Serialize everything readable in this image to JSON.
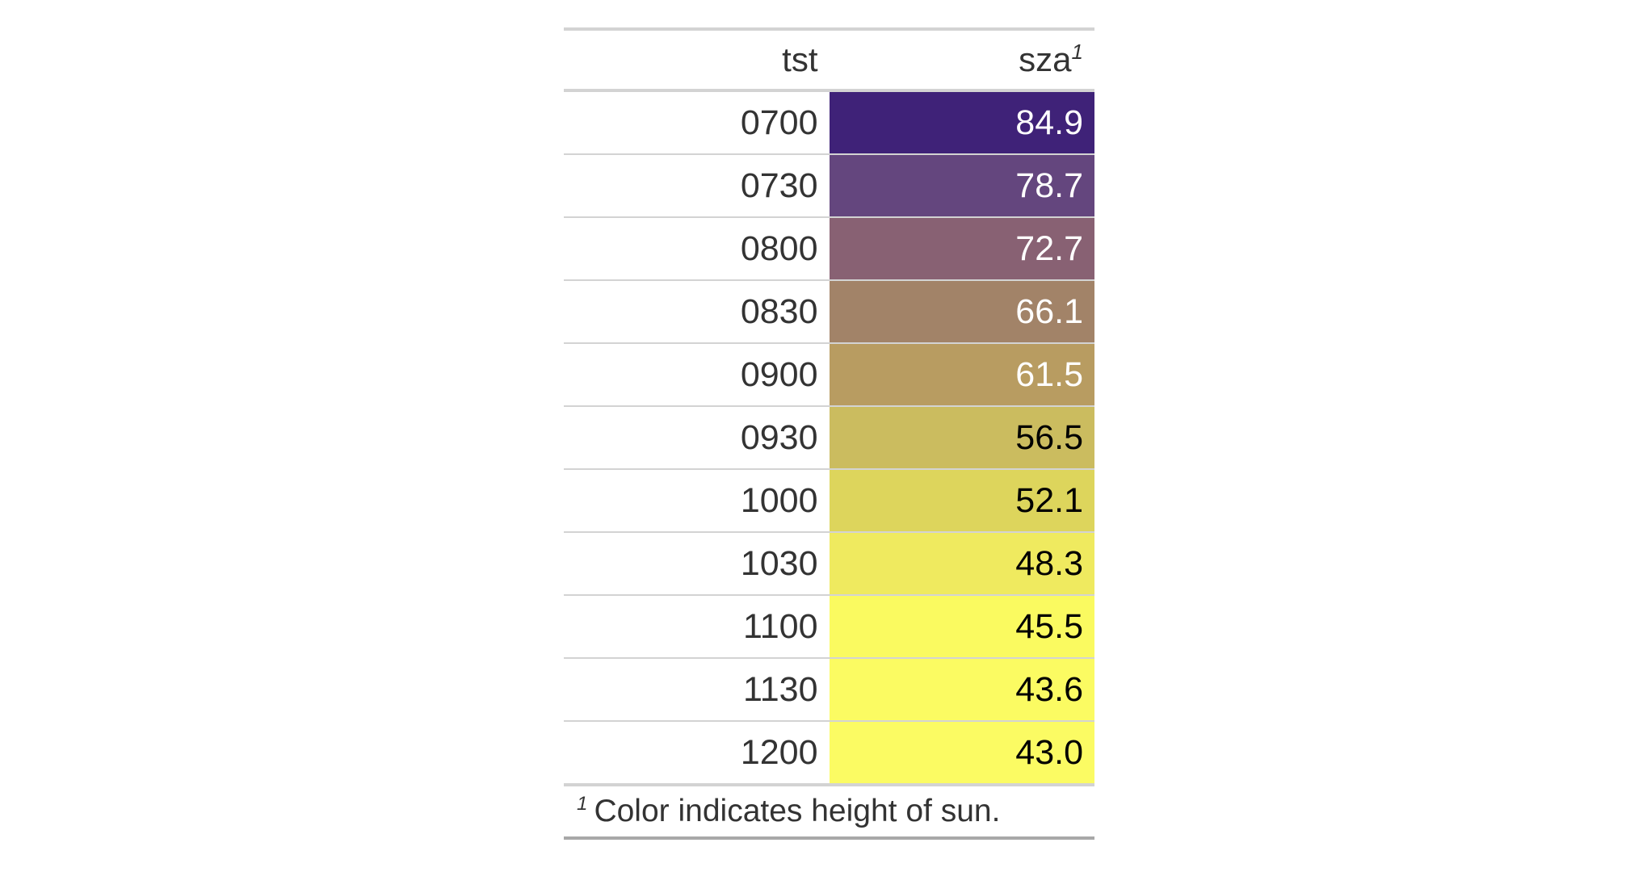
{
  "table": {
    "columns": [
      {
        "label": "tst",
        "footnote_mark": ""
      },
      {
        "label": "sza",
        "footnote_mark": "1"
      }
    ],
    "rows": [
      {
        "tst": "0700",
        "sza": "84.9",
        "bg": "#3F2278",
        "fg": "#FFFFFF"
      },
      {
        "tst": "0730",
        "sza": "78.7",
        "bg": "#64467E",
        "fg": "#FFFFFF"
      },
      {
        "tst": "0800",
        "sza": "72.7",
        "bg": "#886173",
        "fg": "#FFFFFF"
      },
      {
        "tst": "0830",
        "sza": "66.1",
        "bg": "#A28368",
        "fg": "#FFFFFF"
      },
      {
        "tst": "0900",
        "sza": "61.5",
        "bg": "#B89C61",
        "fg": "#FFFFFF"
      },
      {
        "tst": "0930",
        "sza": "56.5",
        "bg": "#CBBC5F",
        "fg": "#000000"
      },
      {
        "tst": "1000",
        "sza": "52.1",
        "bg": "#DDD55C",
        "fg": "#000000"
      },
      {
        "tst": "1030",
        "sza": "48.3",
        "bg": "#EFEA5F",
        "fg": "#000000"
      },
      {
        "tst": "1100",
        "sza": "45.5",
        "bg": "#FAFA60",
        "fg": "#000000"
      },
      {
        "tst": "1130",
        "sza": "43.6",
        "bg": "#FBFB62",
        "fg": "#000000"
      },
      {
        "tst": "1200",
        "sza": "43.0",
        "bg": "#FBFB63",
        "fg": "#000000"
      }
    ],
    "footnote": {
      "mark": "1",
      "text": "Color indicates height of sun."
    }
  },
  "style_colors": {
    "table_border_top": "#D3D3D3",
    "table_border_bottom": "#A8A8A8",
    "row_separator": "#D3D3D3",
    "header_text": "#333333",
    "body_text": "#333333"
  },
  "chart_data": {
    "type": "table",
    "title": "",
    "columns": [
      "tst",
      "sza"
    ],
    "rows": [
      [
        "0700",
        84.9
      ],
      [
        "0730",
        78.7
      ],
      [
        "0800",
        72.7
      ],
      [
        "0830",
        66.1
      ],
      [
        "0900",
        61.5
      ],
      [
        "0930",
        56.5
      ],
      [
        "1000",
        52.1
      ],
      [
        "1030",
        48.3
      ],
      [
        "1100",
        45.5
      ],
      [
        "1130",
        43.6
      ],
      [
        "1200",
        43.0
      ]
    ],
    "footnote": "Color indicates height of sun.",
    "color_encoding": "sza cell fill: dark purple #3F2278 at sza 84.9 grading to bright yellow #FBFB63 at sza 43.0"
  }
}
